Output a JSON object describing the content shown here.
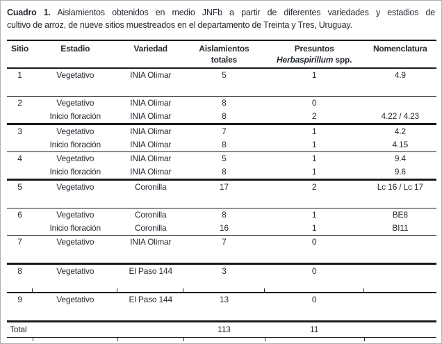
{
  "title": {
    "label_bold": "Cuadro 1.",
    "line1_rest": " Aislamientos obtenidos en medio JNFb a partir de diferentes variedades y estadios de",
    "line2": "cultivo de arroz, de nueve sitios muestreados en el departamento de Treinta y Tres, Uruguay."
  },
  "table": {
    "header": {
      "sitio": "Sitio",
      "estadio": "Estadio",
      "variedad": "Variedad",
      "aislamientos_line1": "Aislamientos",
      "aislamientos_line2": "totales",
      "presuntos_line1": "Presuntos",
      "presuntos_line2_italic": "Herbaspirillum",
      "presuntos_line2_rest": " spp.",
      "nomenclatura": "Nomenclatura"
    },
    "groups": [
      {
        "sitio": "1",
        "border": "thin",
        "filler": true,
        "rows": [
          {
            "estadio": "Vegetativo",
            "variedad": "INIA Olimar",
            "totales": "5",
            "presuntos": "1",
            "nomenclatura": "4.9"
          }
        ]
      },
      {
        "sitio": "2",
        "border": "thick",
        "filler": false,
        "rows": [
          {
            "estadio": "Vegetativo",
            "variedad": "INIA Olimar",
            "totales": "8",
            "presuntos": "0",
            "nomenclatura": ""
          },
          {
            "estadio": "Inicio floración",
            "variedad": "INIA Olimar",
            "totales": "8",
            "presuntos": "2",
            "nomenclatura": "4.22 / 4.23"
          }
        ]
      },
      {
        "sitio": "3",
        "border": "thin",
        "filler": false,
        "rows": [
          {
            "estadio": "Vegetativo",
            "variedad": "INIA Olimar",
            "totales": "7",
            "presuntos": "1",
            "nomenclatura": "4.2"
          },
          {
            "estadio": "Inicio floración",
            "variedad": "INIA Olimar",
            "totales": "8",
            "presuntos": "1",
            "nomenclatura": "4.15"
          }
        ]
      },
      {
        "sitio": "4",
        "border": "thick",
        "filler": false,
        "rows": [
          {
            "estadio": "Vegetativo",
            "variedad": "INIA Olimar",
            "totales": "5",
            "presuntos": "1",
            "nomenclatura": "9.4"
          },
          {
            "estadio": "Inicio floración",
            "variedad": "INIA Olimar",
            "totales": "8",
            "presuntos": "1",
            "nomenclatura": "9.6"
          }
        ]
      },
      {
        "sitio": "5",
        "border": "thin",
        "filler": true,
        "rows": [
          {
            "estadio": "Vegetativo",
            "variedad": "Coronilla",
            "totales": "17",
            "presuntos": "2",
            "nomenclatura": "Lc 16 / Lc 17"
          }
        ]
      },
      {
        "sitio": "6",
        "border": "thin",
        "filler": false,
        "rows": [
          {
            "estadio": "Vegetativo",
            "variedad": "Coronilla",
            "totales": "8",
            "presuntos": "1",
            "nomenclatura": "BE8"
          },
          {
            "estadio": "Inicio floración",
            "variedad": "Coronilla",
            "totales": "16",
            "presuntos": "1",
            "nomenclatura": "BI11"
          }
        ]
      },
      {
        "sitio": "7",
        "border": "thick",
        "filler": true,
        "rows": [
          {
            "estadio": "Vegetativo",
            "variedad": "INIA Olimar",
            "totales": "7",
            "presuntos": "0",
            "nomenclatura": ""
          }
        ]
      },
      {
        "sitio": "8",
        "border": "medium",
        "filler": true,
        "ticks": "bottom",
        "rows": [
          {
            "estadio": "Vegetativo",
            "variedad": "El Paso 144",
            "totales": "3",
            "presuntos": "0",
            "nomenclatura": ""
          }
        ]
      },
      {
        "sitio": "9",
        "border": "thick",
        "filler": true,
        "rows": [
          {
            "estadio": "Vegetativo",
            "variedad": "El Paso 144",
            "totales": "13",
            "presuntos": "0",
            "nomenclatura": ""
          }
        ]
      }
    ],
    "total": {
      "label": "Total",
      "totales": "113",
      "presuntos": "11"
    },
    "tick_positions_pct": [
      5.97,
      25.8,
      41.1,
      60.0,
      83.1
    ]
  },
  "colors": {
    "text": "#252a31",
    "rule": "#1a1a1a",
    "outer_border": "#b0b0b0",
    "background": "#ffffff"
  }
}
